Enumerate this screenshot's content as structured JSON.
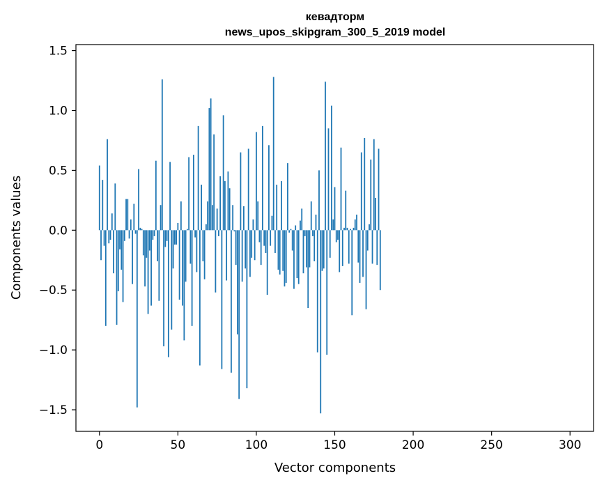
{
  "chart_data": {
    "type": "bar",
    "title_lines": [
      "кевадторм",
      "news_upos_skipgram_300_5_2019 model"
    ],
    "xlabel": "Vector components",
    "ylabel": "Components values",
    "xlim": [
      -15,
      315
    ],
    "ylim": [
      -1.68,
      1.55
    ],
    "xticks": [
      0,
      50,
      100,
      150,
      200,
      250,
      300
    ],
    "xtick_labels": [
      "0",
      "50",
      "100",
      "150",
      "200",
      "250",
      "300"
    ],
    "yticks": [
      -1.5,
      -1.0,
      -0.5,
      0.0,
      0.5,
      1.0,
      1.5
    ],
    "ytick_labels": [
      "−1.5",
      "−1.0",
      "−0.5",
      "0.0",
      "0.5",
      "1.0",
      "1.5"
    ],
    "grid": false,
    "bar_color": "#1f77b4",
    "x_start": 0,
    "values": [
      0.54,
      -0.25,
      0.42,
      -0.13,
      -0.8,
      0.76,
      -0.11,
      -0.08,
      0.14,
      -0.36,
      0.39,
      -0.79,
      -0.51,
      -0.16,
      -0.33,
      -0.6,
      -0.09,
      0.26,
      0.26,
      -0.07,
      0.09,
      -0.45,
      0.22,
      -0.03,
      -1.48,
      0.51,
      0.02,
      0.01,
      -0.21,
      -0.47,
      -0.23,
      -0.7,
      -0.17,
      -0.63,
      -0.08,
      -0.05,
      0.58,
      -0.26,
      -0.59,
      0.21,
      1.26,
      -0.97,
      -0.14,
      -0.09,
      -1.06,
      0.57,
      -0.83,
      -0.32,
      -0.12,
      -0.12,
      0.06,
      -0.58,
      0.24,
      -0.63,
      -0.92,
      -0.43,
      0.01,
      0.61,
      -0.28,
      -0.8,
      0.63,
      -0.06,
      -0.35,
      0.87,
      -1.13,
      0.38,
      -0.26,
      -0.41,
      0.05,
      0.24,
      1.02,
      1.1,
      0.21,
      0.8,
      -0.52,
      0.18,
      -0.05,
      0.45,
      -1.16,
      0.96,
      0.41,
      -0.42,
      0.49,
      0.35,
      -1.19,
      0.21,
      -0.01,
      -0.29,
      -0.87,
      -1.41,
      0.65,
      -0.43,
      0.2,
      -0.32,
      -1.32,
      0.68,
      -0.39,
      -0.23,
      0.09,
      -0.25,
      0.82,
      0.24,
      -0.1,
      -0.29,
      0.87,
      -0.13,
      -0.19,
      -0.54,
      0.71,
      -0.13,
      0.12,
      1.28,
      -0.19,
      0.38,
      -0.33,
      -0.37,
      0.41,
      -0.34,
      -0.47,
      -0.44,
      0.56,
      -0.02,
      0.01,
      -0.17,
      -0.49,
      0.04,
      -0.4,
      -0.45,
      0.08,
      0.18,
      -0.36,
      -0.05,
      -0.31,
      -0.65,
      -0.31,
      0.24,
      -0.05,
      -0.26,
      0.13,
      -1.02,
      0.5,
      -1.53,
      -0.34,
      -0.32,
      1.24,
      -1.04,
      0.85,
      -0.23,
      1.04,
      0.09,
      0.36,
      -0.1,
      -0.08,
      -0.35,
      0.69,
      -0.3,
      0.02,
      0.33,
      0.02,
      -0.28,
      0.01,
      -0.71,
      0.02,
      0.09,
      0.13,
      -0.27,
      -0.44,
      0.65,
      -0.39,
      0.77,
      -0.66,
      -0.17,
      0.05,
      0.59,
      -0.28,
      0.76,
      0.27,
      -0.29,
      0.68,
      -0.5
    ]
  }
}
